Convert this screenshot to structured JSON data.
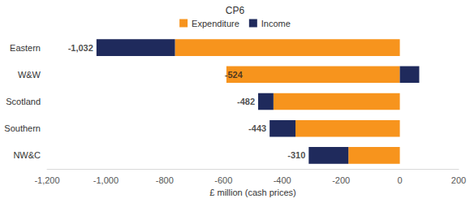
{
  "chart_data": {
    "type": "bar",
    "title": "CP6",
    "orientation": "horizontal",
    "stacked": true,
    "categories": [
      "Eastern",
      "W&W",
      "Scotland",
      "Southern",
      "NW&C"
    ],
    "series": [
      {
        "name": "Expenditure",
        "color": "#F7941D",
        "values": [
          -765,
          -590,
          -430,
          -355,
          -175
        ]
      },
      {
        "name": "Income",
        "color": "#1F2A5C",
        "values": [
          -267,
          66,
          -52,
          -88,
          -135
        ]
      }
    ],
    "totals": [
      -1032,
      -524,
      -482,
      -443,
      -310
    ],
    "total_labels": [
      "-1,032",
      "-524",
      "-482",
      "-443",
      "-310"
    ],
    "xlabel": "£ million (cash prices)",
    "xlim": [
      -1200,
      200
    ],
    "xticks": [
      {
        "value": -1200,
        "label": "-1,200"
      },
      {
        "value": -1000,
        "label": "-1,000"
      },
      -800,
      -600,
      -400,
      -200,
      0,
      200
    ],
    "grid": false,
    "legend": "top"
  }
}
